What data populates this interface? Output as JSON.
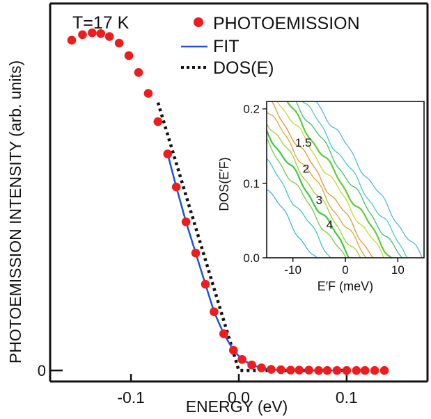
{
  "chart_data": [
    {
      "type": "scatter",
      "annotation": "T=17 K",
      "xlabel": "ENERGY  (eV)",
      "ylabel": "PHOTOEMISSION INTENSITY (arb. units)",
      "xlim": [
        -0.175,
        0.175
      ],
      "ylim": [
        -0.03,
        1.0
      ],
      "x_ticks": [
        {
          "value": -0.1,
          "label": "-0.1"
        },
        {
          "value": 0.0,
          "label": "0.0"
        },
        {
          "value": 0.1,
          "label": "0.1"
        }
      ],
      "y_ticks": [
        {
          "value": 0,
          "label": "0"
        }
      ],
      "legend": {
        "position": "top-right",
        "entries": [
          {
            "label": "PHOTOEMISSION",
            "style": "marker",
            "color": "#ee1c1c"
          },
          {
            "label": "FIT",
            "style": "solid",
            "color": "#1f4fe0"
          },
          {
            "label": "DOS(E)",
            "style": "dotted",
            "color": "#111111"
          }
        ]
      },
      "series": [
        {
          "name": "PHOTOEMISSION",
          "kind": "scatter",
          "color": "#ee1c1c",
          "x": [
            -0.155,
            -0.145,
            -0.136,
            -0.128,
            -0.12,
            -0.111,
            -0.102,
            -0.093,
            -0.084,
            -0.075,
            -0.066,
            -0.058,
            -0.049,
            -0.04,
            -0.031,
            -0.023,
            -0.014,
            -0.005,
            0.003,
            0.012,
            0.021,
            0.03,
            0.039,
            0.048,
            0.056,
            0.065,
            0.074,
            0.082,
            0.091,
            0.1,
            0.109,
            0.117,
            0.126,
            0.135
          ],
          "y": [
            0.9,
            0.915,
            0.92,
            0.918,
            0.91,
            0.892,
            0.858,
            0.812,
            0.755,
            0.678,
            0.59,
            0.5,
            0.405,
            0.32,
            0.235,
            0.16,
            0.1,
            0.055,
            0.03,
            0.015,
            0.007,
            0.003,
            0.002,
            0.001,
            0.001,
            0.001,
            0.0,
            0.0,
            0.0,
            0.0,
            0.0,
            0.0,
            0.0,
            0.0
          ]
        },
        {
          "name": "FIT",
          "kind": "line",
          "color": "#1f4fe0",
          "x": [
            -0.066,
            -0.058,
            -0.049,
            -0.04,
            -0.031,
            -0.023,
            -0.014,
            -0.005,
            0.003,
            0.012,
            0.021,
            0.03,
            0.04,
            0.06,
            0.08,
            0.1
          ],
          "y": [
            0.59,
            0.5,
            0.405,
            0.32,
            0.235,
            0.16,
            0.1,
            0.055,
            0.03,
            0.015,
            0.007,
            0.003,
            0.001,
            0.0,
            0.0,
            0.0
          ]
        },
        {
          "name": "DOS(E)",
          "kind": "dotted",
          "color": "#111111",
          "x": [
            -0.075,
            0.0,
            0.1
          ],
          "y": [
            0.73,
            0.0,
            0.0
          ]
        }
      ]
    },
    {
      "type": "contour",
      "inset": true,
      "xlabel": "E′F (meV)",
      "ylabel": "DOS(E′F)",
      "xlim": [
        -15,
        15
      ],
      "ylim": [
        0.0,
        0.21
      ],
      "x_ticks": [
        {
          "value": -10,
          "label": "-10"
        },
        {
          "value": 0,
          "label": "0"
        },
        {
          "value": 10,
          "label": "10"
        }
      ],
      "y_ticks": [
        {
          "value": 0.0,
          "label": "0.0"
        },
        {
          "value": 0.1,
          "label": "0.1"
        },
        {
          "value": 0.2,
          "label": "0.2"
        }
      ],
      "contour_labels": [
        {
          "text": "1.5",
          "x": -8,
          "y": 0.155
        },
        {
          "text": "2",
          "x": -7.5,
          "y": 0.12
        },
        {
          "text": "3",
          "x": -5,
          "y": 0.078
        },
        {
          "text": "4",
          "x": -3,
          "y": 0.045
        }
      ],
      "contours": [
        {
          "color": "#3db3e3",
          "y_at_left": 0.095
        },
        {
          "color": "#38c6c6",
          "y_at_left": 0.13
        },
        {
          "color": "#6fce3c",
          "y_at_left": 0.155
        },
        {
          "color": "#3cc83c",
          "y_at_left": 0.17
        },
        {
          "color": "#9fcf2c",
          "y_at_left": 0.185
        },
        {
          "color": "#e1a236",
          "y_at_left": 0.2
        },
        {
          "color": "#e8902f",
          "y_at_left": 0.215
        },
        {
          "color": "#c6d630",
          "y_at_left": 0.235
        },
        {
          "color": "#59cd3b",
          "y_at_left": 0.25
        },
        {
          "color": "#34c460",
          "y_at_left": 0.268
        },
        {
          "color": "#43c9c9",
          "y_at_left": 0.285
        },
        {
          "color": "#4ab9e6",
          "y_at_left": 0.31
        }
      ]
    }
  ]
}
